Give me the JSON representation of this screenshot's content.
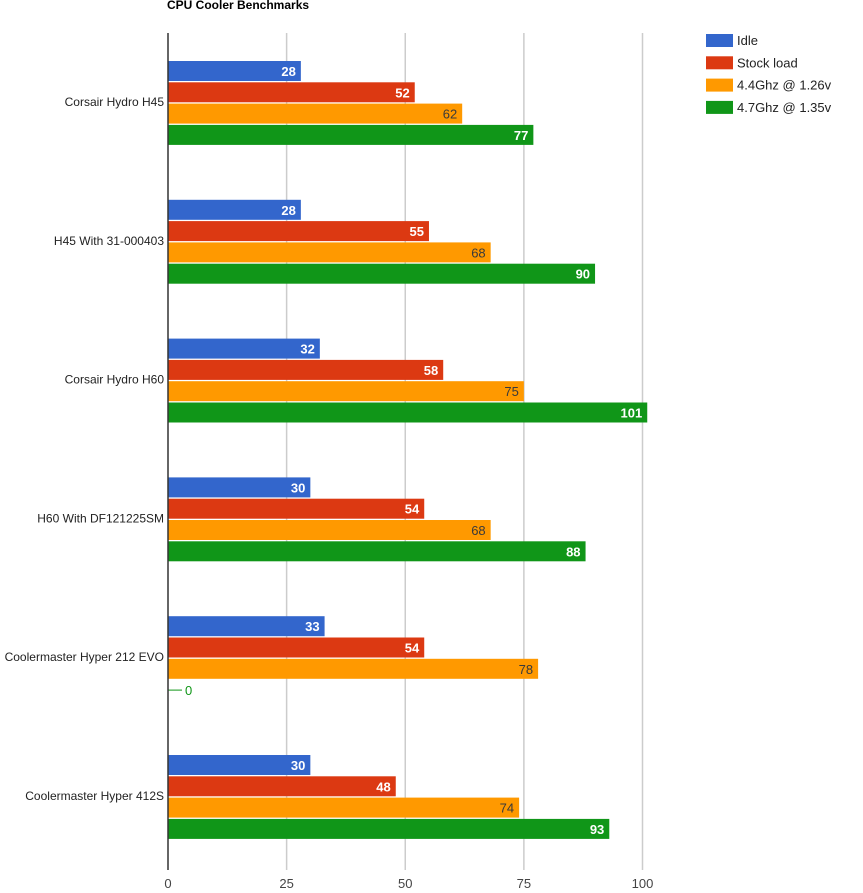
{
  "chart_data": {
    "type": "bar",
    "orientation": "horizontal",
    "title": "CPU Cooler Benchmarks",
    "categories": [
      "Corsair Hydro H45",
      "H45 With 31-000403",
      "Corsair Hydro H60",
      "H60 With DF121225SM",
      "Coolermaster Hyper 212 EVO",
      "Coolermaster Hyper 412S"
    ],
    "series": [
      {
        "name": "Idle",
        "color": "#3366cc",
        "values": [
          28,
          28,
          32,
          30,
          33,
          30
        ]
      },
      {
        "name": "Stock load",
        "color": "#dc3912",
        "values": [
          52,
          55,
          58,
          54,
          54,
          48
        ]
      },
      {
        "name": "4.4Ghz @ 1.26v",
        "color": "#ff9900",
        "values": [
          62,
          68,
          75,
          68,
          78,
          74
        ]
      },
      {
        "name": "4.7Ghz @ 1.35v",
        "color": "#109618",
        "values": [
          77,
          90,
          101,
          88,
          0,
          93
        ]
      }
    ],
    "xlim": [
      0,
      110
    ],
    "xticks": [
      0,
      25,
      50,
      75,
      100
    ],
    "grid": true,
    "legend_position": "top-right",
    "data_labels": true
  }
}
